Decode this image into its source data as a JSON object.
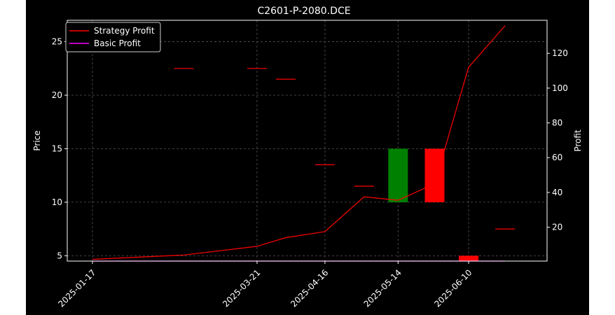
{
  "chart_data": {
    "type": "candlestick+line",
    "title": "C2601-P-2080.DCE",
    "ylabel_left": "Price",
    "ylabel_right": "Profit",
    "xlabel": "",
    "x_ticks": [
      "2025-01-17",
      "2025-03-21",
      "2025-04-16",
      "2025-05-14",
      "2025-06-10"
    ],
    "y_left_ticks": [
      5,
      10,
      15,
      20,
      25
    ],
    "y_right_ticks": [
      20,
      40,
      60,
      80,
      100,
      120
    ],
    "ylim_left": [
      4.5,
      27
    ],
    "ylim_right": [
      0.5,
      139
    ],
    "grid": true,
    "legend_position": "top-left",
    "candles": [
      {
        "date": "2025-02-21",
        "open": 22.5,
        "close": 22.5,
        "high": 22.5,
        "low": 22.5
      },
      {
        "date": "2025-03-21",
        "open": 22.5,
        "close": 22.5,
        "high": 22.5,
        "low": 22.5
      },
      {
        "date": "2025-04-01",
        "open": 21.5,
        "close": 21.5,
        "high": 21.5,
        "low": 21.5
      },
      {
        "date": "2025-04-16",
        "open": 13.5,
        "close": 13.5,
        "high": 13.5,
        "low": 13.5
      },
      {
        "date": "2025-05-01",
        "open": 11.5,
        "close": 11.5,
        "high": 11.5,
        "low": 11.5
      },
      {
        "date": "2025-05-14",
        "open": 10.0,
        "close": 15.0,
        "high": 15.0,
        "low": 10.0
      },
      {
        "date": "2025-05-28",
        "open": 15.0,
        "close": 10.0,
        "high": 15.0,
        "low": 10.0
      },
      {
        "date": "2025-06-10",
        "open": 5.0,
        "close": 4.5,
        "high": 5.0,
        "low": 4.5
      },
      {
        "date": "2025-06-24",
        "open": 7.5,
        "close": 7.5,
        "high": 7.5,
        "low": 7.5
      }
    ],
    "series": [
      {
        "name": "Strategy Profit",
        "color": "#ff0000",
        "points": [
          {
            "x": "2025-01-17",
            "y": 1.5
          },
          {
            "x": "2025-02-21",
            "y": 4
          },
          {
            "x": "2025-03-21",
            "y": 9
          },
          {
            "x": "2025-04-01",
            "y": 14
          },
          {
            "x": "2025-04-16",
            "y": 17.5
          },
          {
            "x": "2025-05-01",
            "y": 37.5
          },
          {
            "x": "2025-05-14",
            "y": 35.5
          },
          {
            "x": "2025-05-28",
            "y": 45
          },
          {
            "x": "2025-06-10",
            "y": 112
          },
          {
            "x": "2025-06-24",
            "y": 136
          }
        ]
      },
      {
        "name": "Basic Profit",
        "color": "#ff00ff",
        "points": [
          {
            "x": "2025-01-17",
            "y": 0.5
          },
          {
            "x": "2025-06-24",
            "y": 0.5
          }
        ]
      }
    ]
  }
}
